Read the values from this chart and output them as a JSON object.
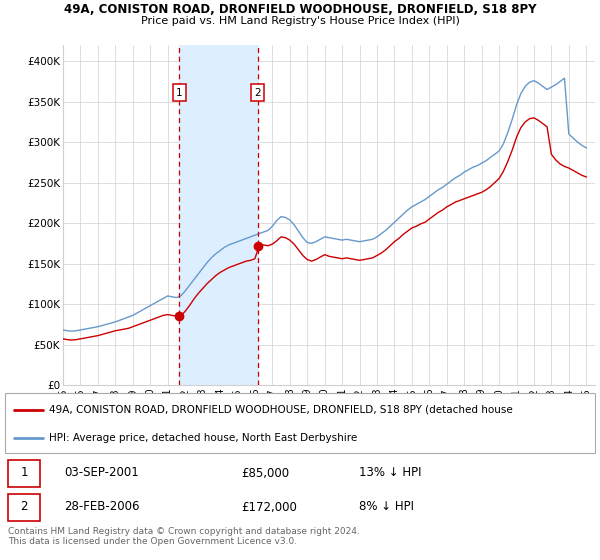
{
  "title_line1": "49A, CONISTON ROAD, DRONFIELD WOODHOUSE, DRONFIELD, S18 8PY",
  "title_line2": "Price paid vs. HM Land Registry's House Price Index (HPI)",
  "xlim_start": 1995.0,
  "xlim_end": 2025.5,
  "ylim": [
    0,
    420000
  ],
  "yticks": [
    0,
    50000,
    100000,
    150000,
    200000,
    250000,
    300000,
    350000,
    400000
  ],
  "ytick_labels": [
    "£0",
    "£50K",
    "£100K",
    "£150K",
    "£200K",
    "£250K",
    "£300K",
    "£350K",
    "£400K"
  ],
  "xtick_years": [
    1995,
    1996,
    1997,
    1998,
    1999,
    2000,
    2001,
    2002,
    2003,
    2004,
    2005,
    2006,
    2007,
    2008,
    2009,
    2010,
    2011,
    2012,
    2013,
    2014,
    2015,
    2016,
    2017,
    2018,
    2019,
    2020,
    2021,
    2022,
    2023,
    2024,
    2025
  ],
  "sale1_x": 2001.67,
  "sale1_y": 85000,
  "sale1_label": "1",
  "sale2_x": 2006.17,
  "sale2_y": 172000,
  "sale2_label": "2",
  "highlight_color": "#ddeeff",
  "vline_color": "#cc0000",
  "line_property_color": "#cc0000",
  "line_hpi_color": "#6699cc",
  "legend_property_label": "49A, CONISTON ROAD, DRONFIELD WOODHOUSE, DRONFIELD, S18 8PY (detached house",
  "legend_hpi_label": "HPI: Average price, detached house, North East Derbyshire",
  "table_row1": [
    "1",
    "03-SEP-2001",
    "£85,000",
    "13% ↓ HPI"
  ],
  "table_row2": [
    "2",
    "28-FEB-2006",
    "£172,000",
    "8% ↓ HPI"
  ],
  "footer": "Contains HM Land Registry data © Crown copyright and database right 2024.\nThis data is licensed under the Open Government Licence v3.0.",
  "hpi_x": [
    1995.0,
    1995.25,
    1995.5,
    1995.75,
    1996.0,
    1996.25,
    1996.5,
    1996.75,
    1997.0,
    1997.25,
    1997.5,
    1997.75,
    1998.0,
    1998.25,
    1998.5,
    1998.75,
    1999.0,
    1999.25,
    1999.5,
    1999.75,
    2000.0,
    2000.25,
    2000.5,
    2000.75,
    2001.0,
    2001.25,
    2001.5,
    2001.75,
    2002.0,
    2002.25,
    2002.5,
    2002.75,
    2003.0,
    2003.25,
    2003.5,
    2003.75,
    2004.0,
    2004.25,
    2004.5,
    2004.75,
    2005.0,
    2005.25,
    2005.5,
    2005.75,
    2006.0,
    2006.25,
    2006.5,
    2006.75,
    2007.0,
    2007.25,
    2007.5,
    2007.75,
    2008.0,
    2008.25,
    2008.5,
    2008.75,
    2009.0,
    2009.25,
    2009.5,
    2009.75,
    2010.0,
    2010.25,
    2010.5,
    2010.75,
    2011.0,
    2011.25,
    2011.5,
    2011.75,
    2012.0,
    2012.25,
    2012.5,
    2012.75,
    2013.0,
    2013.25,
    2013.5,
    2013.75,
    2014.0,
    2014.25,
    2014.5,
    2014.75,
    2015.0,
    2015.25,
    2015.5,
    2015.75,
    2016.0,
    2016.25,
    2016.5,
    2016.75,
    2017.0,
    2017.25,
    2017.5,
    2017.75,
    2018.0,
    2018.25,
    2018.5,
    2018.75,
    2019.0,
    2019.25,
    2019.5,
    2019.75,
    2020.0,
    2020.25,
    2020.5,
    2020.75,
    2021.0,
    2021.25,
    2021.5,
    2021.75,
    2022.0,
    2022.25,
    2022.5,
    2022.75,
    2023.0,
    2023.25,
    2023.5,
    2023.75,
    2024.0,
    2024.25,
    2024.5,
    2024.75,
    2025.0
  ],
  "hpi_y": [
    68000,
    67000,
    66500,
    67000,
    68000,
    69000,
    70000,
    71000,
    72000,
    73500,
    75000,
    76500,
    78000,
    80000,
    82000,
    84000,
    86000,
    89000,
    92000,
    95000,
    98000,
    101000,
    104000,
    107000,
    110000,
    109000,
    108000,
    110000,
    116000,
    123000,
    130000,
    137000,
    144000,
    151000,
    157000,
    162000,
    166000,
    170000,
    173000,
    175000,
    177000,
    179000,
    181000,
    183000,
    185000,
    187000,
    189000,
    191000,
    196000,
    203000,
    208000,
    207000,
    204000,
    198000,
    190000,
    182000,
    176000,
    175000,
    177000,
    180000,
    183000,
    182000,
    181000,
    180000,
    179000,
    180000,
    179000,
    178000,
    177000,
    178000,
    179000,
    180000,
    183000,
    187000,
    191000,
    196000,
    201000,
    206000,
    211000,
    216000,
    220000,
    223000,
    226000,
    229000,
    233000,
    237000,
    241000,
    244000,
    248000,
    252000,
    256000,
    259000,
    263000,
    266000,
    269000,
    271000,
    274000,
    277000,
    281000,
    285000,
    289000,
    298000,
    312000,
    328000,
    346000,
    360000,
    369000,
    374000,
    376000,
    373000,
    369000,
    365000,
    368000,
    371000,
    375000,
    379000,
    310000,
    305000,
    300000,
    296000,
    293000
  ],
  "prop_x": [
    1995.0,
    1995.25,
    1995.5,
    1995.75,
    1996.0,
    1996.25,
    1996.5,
    1996.75,
    1997.0,
    1997.25,
    1997.5,
    1997.75,
    1998.0,
    1998.25,
    1998.5,
    1998.75,
    1999.0,
    1999.25,
    1999.5,
    1999.75,
    2000.0,
    2000.25,
    2000.5,
    2000.75,
    2001.0,
    2001.25,
    2001.5,
    2001.75,
    2002.0,
    2002.25,
    2002.5,
    2002.75,
    2003.0,
    2003.25,
    2003.5,
    2003.75,
    2004.0,
    2004.25,
    2004.5,
    2004.75,
    2005.0,
    2005.25,
    2005.5,
    2005.75,
    2006.0,
    2006.25,
    2006.5,
    2006.75,
    2007.0,
    2007.25,
    2007.5,
    2007.75,
    2008.0,
    2008.25,
    2008.5,
    2008.75,
    2009.0,
    2009.25,
    2009.5,
    2009.75,
    2010.0,
    2010.25,
    2010.5,
    2010.75,
    2011.0,
    2011.25,
    2011.5,
    2011.75,
    2012.0,
    2012.25,
    2012.5,
    2012.75,
    2013.0,
    2013.25,
    2013.5,
    2013.75,
    2014.0,
    2014.25,
    2014.5,
    2014.75,
    2015.0,
    2015.25,
    2015.5,
    2015.75,
    2016.0,
    2016.25,
    2016.5,
    2016.75,
    2017.0,
    2017.25,
    2017.5,
    2017.75,
    2018.0,
    2018.25,
    2018.5,
    2018.75,
    2019.0,
    2019.25,
    2019.5,
    2019.75,
    2020.0,
    2020.25,
    2020.5,
    2020.75,
    2021.0,
    2021.25,
    2021.5,
    2021.75,
    2022.0,
    2022.25,
    2022.5,
    2022.75,
    2023.0,
    2023.25,
    2023.5,
    2023.75,
    2024.0,
    2024.25,
    2024.5,
    2024.75,
    2025.0
  ],
  "prop_y": [
    57000,
    56000,
    55500,
    56000,
    57000,
    58000,
    59000,
    60000,
    61000,
    62500,
    64000,
    65500,
    67000,
    68000,
    69000,
    70000,
    72000,
    74000,
    76000,
    78000,
    80000,
    82000,
    84000,
    86000,
    87000,
    86000,
    85000,
    85000,
    91000,
    98000,
    106000,
    113000,
    119000,
    125000,
    130000,
    135000,
    139000,
    142000,
    145000,
    147000,
    149000,
    151000,
    153000,
    154000,
    156000,
    172000,
    173000,
    172000,
    174000,
    178000,
    183000,
    182000,
    179000,
    174000,
    167000,
    160000,
    155000,
    153000,
    155000,
    158000,
    161000,
    159000,
    158000,
    157000,
    156000,
    157000,
    156000,
    155000,
    154000,
    155000,
    156000,
    157000,
    160000,
    163000,
    167000,
    172000,
    177000,
    181000,
    186000,
    190000,
    194000,
    196000,
    199000,
    201000,
    205000,
    209000,
    213000,
    216000,
    220000,
    223000,
    226000,
    228000,
    230000,
    232000,
    234000,
    236000,
    238000,
    241000,
    245000,
    250000,
    255000,
    264000,
    276000,
    290000,
    306000,
    318000,
    325000,
    329000,
    330000,
    327000,
    323000,
    319000,
    285000,
    278000,
    273000,
    270000,
    268000,
    265000,
    262000,
    259000,
    257000
  ]
}
